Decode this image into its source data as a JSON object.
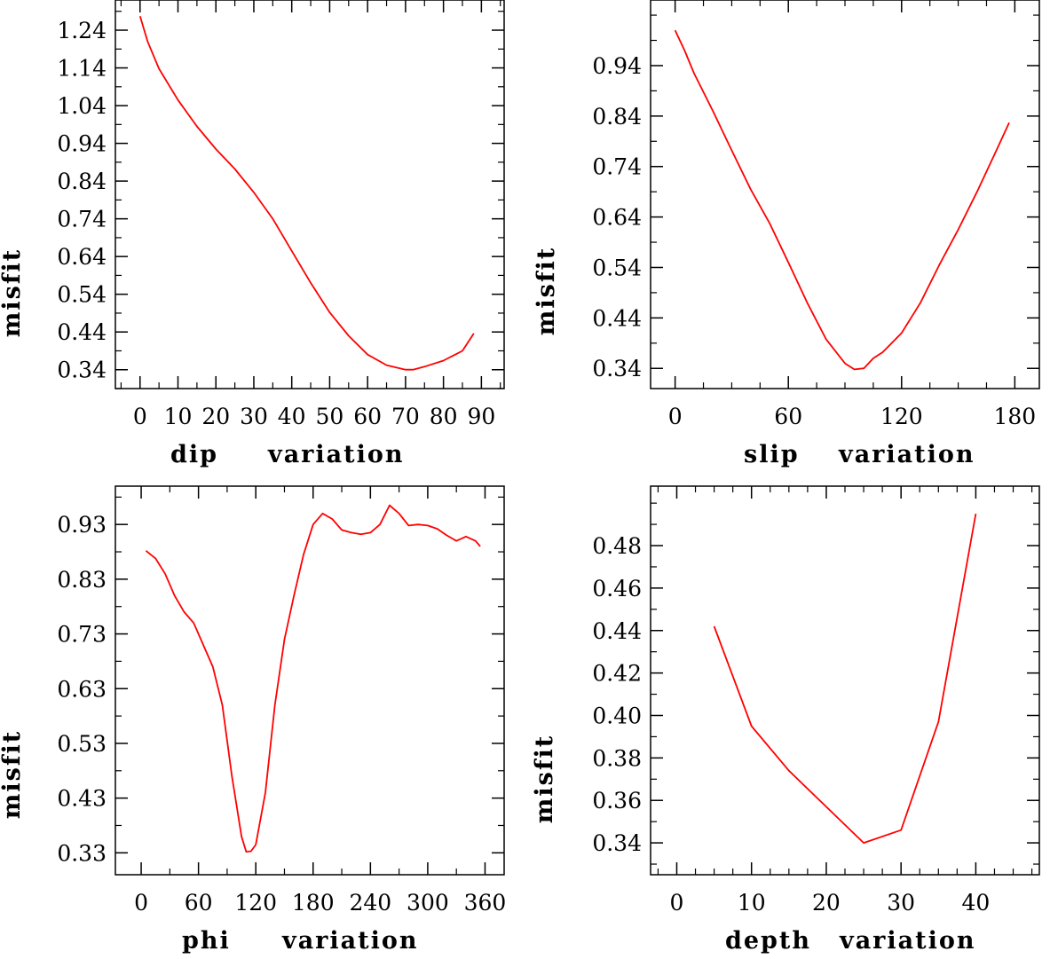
{
  "chart_data": [
    {
      "type": "line",
      "title": "",
      "xlabel_param": "dip",
      "xlabel_word": "variation",
      "ylabel": "misfit",
      "xlim": [
        -6.5,
        96
      ],
      "ylim": [
        0.29,
        1.32
      ],
      "xticks": [
        0,
        10,
        20,
        30,
        40,
        50,
        60,
        70,
        80,
        90
      ],
      "xtick_labels": [
        "0",
        "10",
        "20",
        "30",
        "40",
        "50",
        "60",
        "70",
        "80",
        "90"
      ],
      "yticks": [
        1.24,
        1.14,
        1.04,
        0.94,
        0.84,
        0.74,
        0.64,
        0.54,
        0.44,
        0.34
      ],
      "ytick_labels": [
        "1.24",
        "1.14",
        "1.04",
        "0.94",
        "0.84",
        "0.74",
        "0.64",
        "0.54",
        "0.44",
        "0.34"
      ],
      "x": [
        0,
        2,
        5,
        10,
        15,
        20,
        25,
        30,
        35,
        40,
        45,
        50,
        55,
        60,
        65,
        70,
        72,
        75,
        80,
        85,
        88
      ],
      "y": [
        1.277,
        1.21,
        1.138,
        1.055,
        0.985,
        0.925,
        0.872,
        0.81,
        0.74,
        0.655,
        0.57,
        0.492,
        0.43,
        0.38,
        0.352,
        0.34,
        0.34,
        0.348,
        0.364,
        0.39,
        0.436
      ],
      "series_color": "#ff0000"
    },
    {
      "type": "line",
      "title": "",
      "xlabel_param": "slip",
      "xlabel_word": "variation",
      "ylabel": "misfit",
      "xlim": [
        -13,
        193
      ],
      "ylim": [
        0.3,
        1.07
      ],
      "xticks": [
        0,
        60,
        120,
        180
      ],
      "xtick_labels": [
        "0",
        "60",
        "120",
        "180"
      ],
      "yticks": [
        0.94,
        0.84,
        0.74,
        0.64,
        0.54,
        0.44,
        0.34
      ],
      "ytick_labels": [
        "0.94",
        "0.84",
        "0.74",
        "0.64",
        "0.54",
        "0.44",
        "0.34"
      ],
      "x": [
        0,
        5,
        10,
        20,
        30,
        40,
        50,
        60,
        70,
        80,
        90,
        95,
        100,
        105,
        110,
        120,
        130,
        140,
        150,
        160,
        170,
        177
      ],
      "y": [
        1.01,
        0.97,
        0.925,
        0.85,
        0.772,
        0.695,
        0.628,
        0.55,
        0.47,
        0.398,
        0.35,
        0.338,
        0.34,
        0.36,
        0.372,
        0.41,
        0.47,
        0.545,
        0.615,
        0.69,
        0.77,
        0.827
      ],
      "series_color": "#ff0000"
    },
    {
      "type": "line",
      "title": "",
      "xlabel_param": "phi",
      "xlabel_word": "variation",
      "ylabel": "misfit",
      "xlim": [
        -27,
        380
      ],
      "ylim": [
        0.29,
        1.0
      ],
      "xticks": [
        0,
        60,
        120,
        180,
        240,
        300,
        360
      ],
      "xtick_labels": [
        "0",
        "60",
        "120",
        "180",
        "240",
        "300",
        "360"
      ],
      "yticks": [
        0.93,
        0.83,
        0.73,
        0.63,
        0.53,
        0.43,
        0.33
      ],
      "ytick_labels": [
        "0.93",
        "0.83",
        "0.73",
        "0.63",
        "0.53",
        "0.43",
        "0.33"
      ],
      "x": [
        5,
        15,
        25,
        35,
        45,
        55,
        65,
        75,
        85,
        95,
        105,
        110,
        115,
        120,
        130,
        140,
        150,
        160,
        170,
        180,
        190,
        200,
        210,
        220,
        230,
        240,
        250,
        260,
        270,
        280,
        290,
        300,
        310,
        320,
        330,
        340,
        350,
        355
      ],
      "y": [
        0.882,
        0.868,
        0.84,
        0.8,
        0.77,
        0.75,
        0.71,
        0.67,
        0.6,
        0.47,
        0.36,
        0.332,
        0.333,
        0.345,
        0.44,
        0.6,
        0.72,
        0.8,
        0.875,
        0.93,
        0.95,
        0.94,
        0.92,
        0.915,
        0.912,
        0.915,
        0.93,
        0.965,
        0.95,
        0.928,
        0.93,
        0.928,
        0.922,
        0.91,
        0.9,
        0.908,
        0.9,
        0.89
      ],
      "series_color": "#ff0000"
    },
    {
      "type": "line",
      "title": "",
      "xlabel_param": "depth",
      "xlabel_word": "variation",
      "ylabel": "misfit",
      "xlim": [
        -3.5,
        48.5
      ],
      "ylim": [
        0.325,
        0.508
      ],
      "xticks": [
        0,
        10,
        20,
        30,
        40
      ],
      "xtick_labels": [
        "0",
        "10",
        "20",
        "30",
        "40"
      ],
      "yticks": [
        0.48,
        0.46,
        0.44,
        0.42,
        0.4,
        0.38,
        0.36,
        0.34
      ],
      "ytick_labels": [
        "0.48",
        "0.46",
        "0.44",
        "0.42",
        "0.40",
        "0.38",
        "0.36",
        "0.34"
      ],
      "x": [
        5,
        10,
        15,
        20,
        25,
        30,
        35,
        40
      ],
      "y": [
        0.442,
        0.395,
        0.374,
        0.357,
        0.34,
        0.346,
        0.397,
        0.495
      ],
      "series_color": "#ff0000"
    }
  ]
}
